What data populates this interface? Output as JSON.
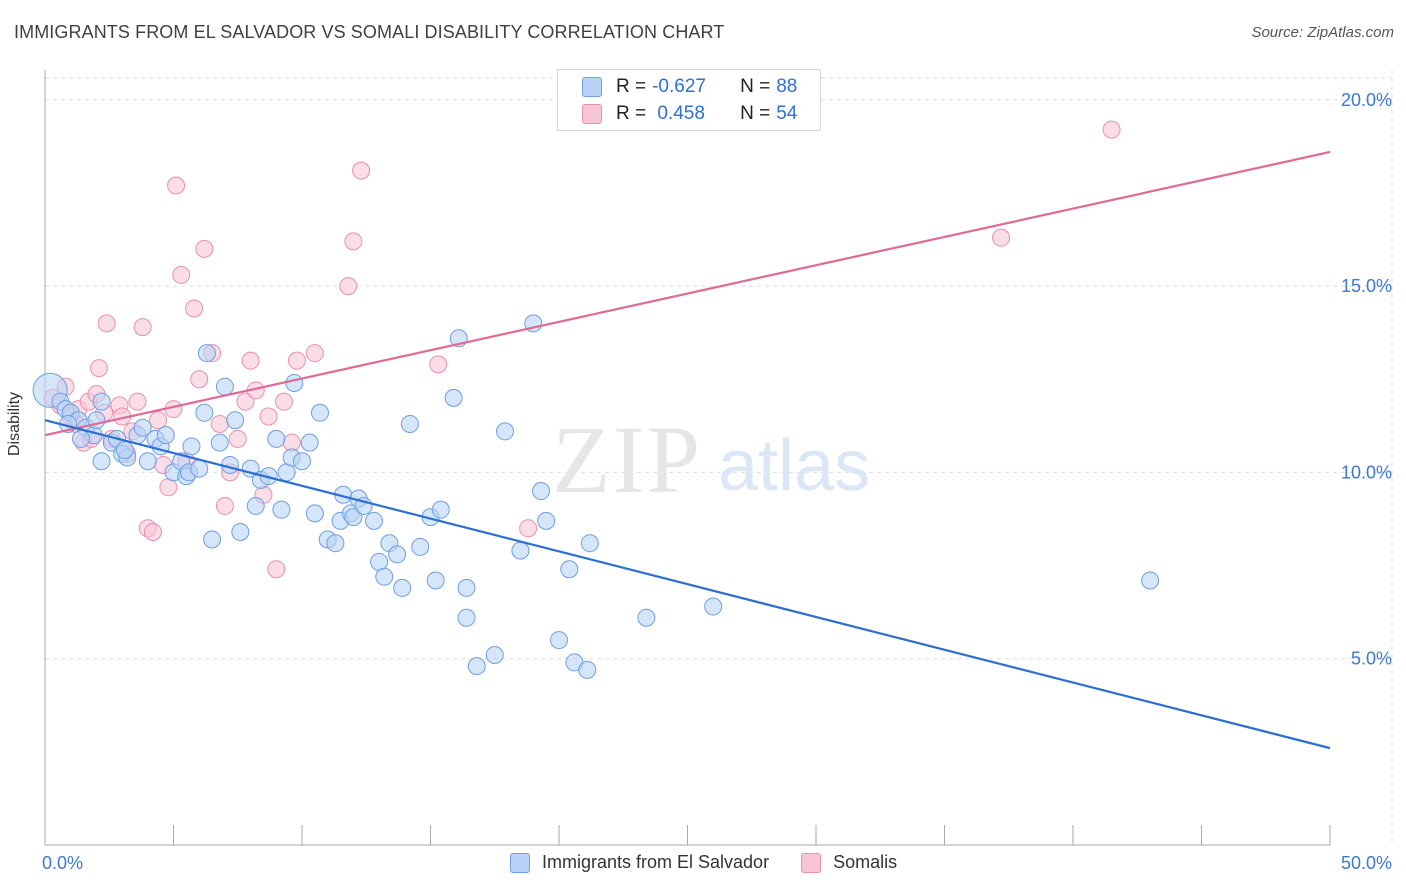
{
  "header": {
    "title": "IMMIGRANTS FROM EL SALVADOR VS SOMALI DISABILITY CORRELATION CHART",
    "source": "Source: ZipAtlas.com"
  },
  "watermark": {
    "zip": "ZIP",
    "atlas": "atlas"
  },
  "legend": {
    "rows": [
      {
        "r_label": "R = ",
        "r_value": "-0.627",
        "n_label": "N = ",
        "n_value": "88"
      },
      {
        "r_label": "R = ",
        "r_value": " 0.458",
        "n_label": "N = ",
        "n_value": "54"
      }
    ]
  },
  "colors": {
    "blue_fill": "#b9d3f7",
    "blue_stroke": "#6e9fe0",
    "blue_line": "#2c6fd1",
    "pink_fill": "#f7c6d5",
    "pink_stroke": "#e991ad",
    "pink_line": "#e06a93",
    "grid": "#dddddd",
    "tick_text": "#3b78d8"
  },
  "chart_data": {
    "type": "scatter",
    "title": "IMMIGRANTS FROM EL SALVADOR VS SOMALI DISABILITY CORRELATION CHART",
    "xlabel": "",
    "ylabel": "Disability",
    "xlim": [
      0,
      50
    ],
    "ylim": [
      0,
      20.8
    ],
    "x_tick_labels": [
      "0.0%",
      "50.0%"
    ],
    "y_ticks": [
      5,
      10,
      15,
      20
    ],
    "y_tick_labels": [
      "5.0%",
      "10.0%",
      "15.0%",
      "20.0%"
    ],
    "grid": true,
    "legend_position": "top-center",
    "series": [
      {
        "name": "Immigrants from El Salvador",
        "r": -0.627,
        "n": 88,
        "trend": {
          "x": [
            0,
            50
          ],
          "y": [
            11.4,
            2.6
          ]
        },
        "points": [
          [
            0.2,
            12.2
          ],
          [
            0.6,
            11.9
          ],
          [
            0.8,
            11.7
          ],
          [
            1.0,
            11.6
          ],
          [
            1.3,
            11.4
          ],
          [
            1.6,
            11.2
          ],
          [
            1.9,
            11.0
          ],
          [
            0.9,
            11.3
          ],
          [
            2.0,
            11.4
          ],
          [
            2.2,
            10.3
          ],
          [
            2.6,
            10.8
          ],
          [
            2.8,
            10.9
          ],
          [
            3.0,
            10.5
          ],
          [
            3.2,
            10.4
          ],
          [
            3.6,
            11.0
          ],
          [
            3.8,
            11.2
          ],
          [
            4.0,
            10.3
          ],
          [
            4.3,
            10.9
          ],
          [
            4.5,
            10.7
          ],
          [
            4.7,
            11.0
          ],
          [
            5.0,
            10.0
          ],
          [
            5.3,
            10.3
          ],
          [
            5.5,
            9.9
          ],
          [
            5.6,
            10.0
          ],
          [
            5.7,
            10.7
          ],
          [
            6.0,
            10.1
          ],
          [
            6.2,
            11.6
          ],
          [
            6.3,
            13.2
          ],
          [
            6.5,
            8.2
          ],
          [
            6.8,
            10.8
          ],
          [
            7.0,
            12.3
          ],
          [
            7.2,
            10.2
          ],
          [
            7.4,
            11.4
          ],
          [
            7.6,
            8.4
          ],
          [
            8.0,
            10.1
          ],
          [
            8.2,
            9.1
          ],
          [
            8.4,
            9.8
          ],
          [
            8.7,
            9.9
          ],
          [
            9.0,
            10.9
          ],
          [
            9.2,
            9.0
          ],
          [
            9.4,
            10.0
          ],
          [
            9.6,
            10.4
          ],
          [
            9.7,
            12.4
          ],
          [
            10.0,
            10.3
          ],
          [
            10.3,
            10.8
          ],
          [
            10.5,
            8.9
          ],
          [
            10.7,
            11.6
          ],
          [
            11.0,
            8.2
          ],
          [
            11.3,
            8.1
          ],
          [
            11.5,
            8.7
          ],
          [
            11.6,
            9.4
          ],
          [
            11.9,
            8.9
          ],
          [
            12.0,
            8.8
          ],
          [
            12.2,
            9.3
          ],
          [
            12.4,
            9.1
          ],
          [
            12.8,
            8.7
          ],
          [
            13.0,
            7.6
          ],
          [
            13.2,
            7.2
          ],
          [
            13.4,
            8.1
          ],
          [
            13.7,
            7.8
          ],
          [
            13.9,
            6.9
          ],
          [
            14.2,
            11.3
          ],
          [
            14.6,
            8.0
          ],
          [
            15.0,
            8.8
          ],
          [
            15.2,
            7.1
          ],
          [
            15.4,
            9.0
          ],
          [
            15.9,
            12.0
          ],
          [
            16.1,
            13.6
          ],
          [
            16.4,
            6.9
          ],
          [
            16.4,
            6.1
          ],
          [
            16.8,
            4.8
          ],
          [
            17.5,
            5.1
          ],
          [
            17.9,
            11.1
          ],
          [
            18.5,
            7.9
          ],
          [
            19.0,
            14.0
          ],
          [
            19.3,
            9.5
          ],
          [
            19.5,
            8.7
          ],
          [
            20.0,
            5.5
          ],
          [
            20.4,
            7.4
          ],
          [
            20.6,
            4.9
          ],
          [
            21.1,
            4.7
          ],
          [
            21.2,
            8.1
          ],
          [
            23.4,
            6.1
          ],
          [
            26.0,
            6.4
          ],
          [
            43.0,
            7.1
          ],
          [
            1.4,
            10.9
          ],
          [
            3.1,
            10.6
          ],
          [
            2.2,
            11.9
          ]
        ]
      },
      {
        "name": "Somalis",
        "r": 0.458,
        "n": 54,
        "trend": {
          "x": [
            0,
            50
          ],
          "y": [
            11.0,
            18.6
          ]
        },
        "points": [
          [
            0.3,
            12.0
          ],
          [
            0.6,
            11.8
          ],
          [
            0.8,
            12.3
          ],
          [
            1.0,
            11.5
          ],
          [
            1.2,
            11.3
          ],
          [
            1.3,
            11.7
          ],
          [
            1.5,
            10.8
          ],
          [
            1.7,
            11.9
          ],
          [
            1.8,
            10.9
          ],
          [
            2.0,
            12.1
          ],
          [
            2.1,
            12.8
          ],
          [
            2.3,
            11.6
          ],
          [
            2.6,
            10.9
          ],
          [
            2.9,
            11.8
          ],
          [
            3.0,
            11.5
          ],
          [
            3.2,
            10.5
          ],
          [
            3.4,
            11.1
          ],
          [
            3.6,
            11.9
          ],
          [
            3.8,
            13.9
          ],
          [
            4.0,
            8.5
          ],
          [
            4.2,
            8.4
          ],
          [
            4.4,
            11.4
          ],
          [
            4.6,
            10.2
          ],
          [
            4.8,
            9.6
          ],
          [
            5.0,
            11.7
          ],
          [
            5.1,
            17.7
          ],
          [
            5.3,
            15.3
          ],
          [
            5.5,
            10.3
          ],
          [
            5.8,
            14.4
          ],
          [
            6.0,
            12.5
          ],
          [
            6.2,
            16.0
          ],
          [
            6.5,
            13.2
          ],
          [
            6.8,
            11.3
          ],
          [
            7.0,
            9.1
          ],
          [
            7.2,
            10.0
          ],
          [
            7.5,
            10.9
          ],
          [
            7.8,
            11.9
          ],
          [
            8.0,
            13.0
          ],
          [
            8.2,
            12.2
          ],
          [
            8.5,
            9.4
          ],
          [
            8.7,
            11.5
          ],
          [
            9.0,
            7.4
          ],
          [
            9.3,
            11.9
          ],
          [
            9.6,
            10.8
          ],
          [
            9.8,
            13.0
          ],
          [
            10.5,
            13.2
          ],
          [
            11.8,
            15.0
          ],
          [
            12.0,
            16.2
          ],
          [
            12.3,
            18.1
          ],
          [
            15.3,
            12.9
          ],
          [
            18.8,
            8.5
          ],
          [
            37.2,
            16.3
          ],
          [
            41.5,
            19.2
          ],
          [
            2.4,
            14.0
          ]
        ]
      }
    ]
  },
  "bottom_legend": {
    "items": [
      {
        "label": "Immigrants from El Salvador"
      },
      {
        "label": "Somalis"
      }
    ]
  }
}
